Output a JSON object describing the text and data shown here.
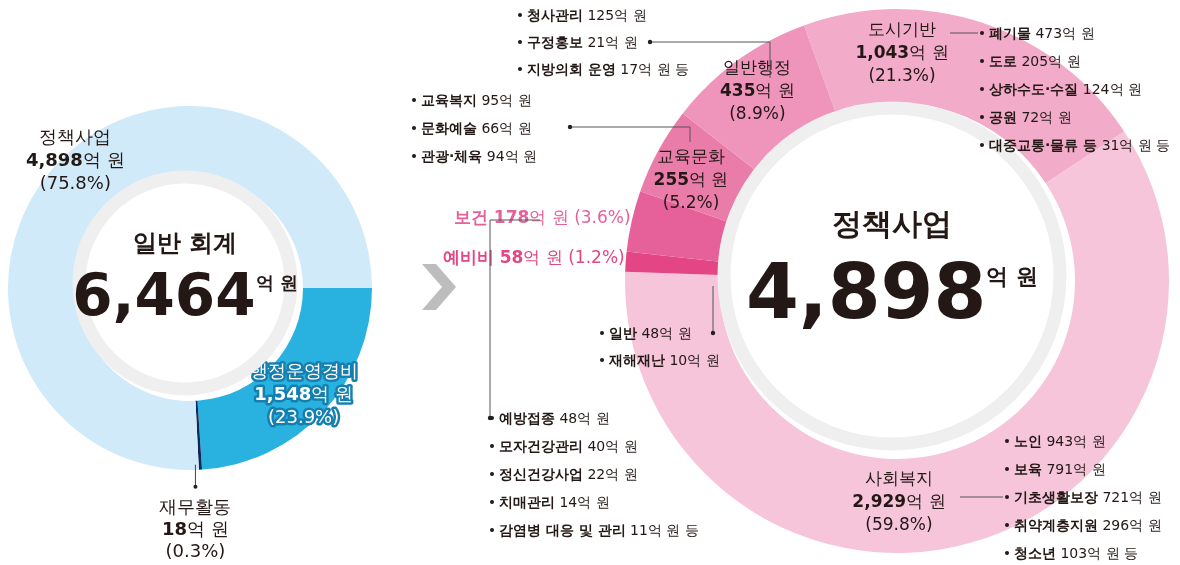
{
  "chart_data": [
    {
      "type": "donut",
      "title": "일반 회계",
      "subtitle": "6,464$^{억 원}$",
      "categories": [
        "행정운영경비",
        "재무활동",
        "정책사업"
      ],
      "values": [
        1548,
        18,
        4898
      ],
      "colors": [
        "#29b2e0",
        "#0d2a5a",
        "#d0eaf9"
      ],
      "value_labels": [
        "1,548억 원\n(23.9%)",
        "18억 원\n(0.3%)",
        "4,898억 원\n(75.8%)"
      ]
    },
    {
      "type": "donut",
      "title": "정책사업",
      "subtitle": "4,898$^{억 원}$",
      "categories": [
        "도시기반",
        "사회복지",
        "예비비",
        "보건",
        "교육문화",
        "일반행정"
      ],
      "values": [
        1043,
        2929,
        58,
        178,
        255,
        435
      ],
      "colors": [
        "#f2abc9",
        "#f6c5da",
        "#e44585",
        "#e6609a",
        "#ea7caa",
        "#ef95bb"
      ],
      "value_labels": [
        "1,043억 원\n(21.3%)",
        "2,929억 원\n(59.8%)",
        "58억 원 (1.2%)",
        "178억 원 (3.6%)",
        "255억 원\n(5.2%)",
        "435억 원\n(8.9%)"
      ],
      "annotations": [
        "청사관리 125억 원",
        "구정홍보 21억 원",
        "지방의회 운영 17억 원 등",
        "교육복지 95억 원",
        "문화예술 66억 원",
        "관광·체육 94억 원",
        "폐기물 473억 원",
        "도로 205억 원",
        "상하수도·수질 124억 원",
        "공원 72억 원",
        "대중교통·물류 등 31억 원 등",
        "일반 48억 원",
        "재해재난 10억 원",
        "예방접종 48억 원",
        "모자건강관리 40억 원",
        "정신건강사업 22억 원",
        "치매관리 14억 원",
        "감염병 대응 및 관리 11억 원 등",
        "노인 943억 원",
        "보육 791억 원",
        "기초생활보장 721억 원",
        "취약계층지원 296억 원",
        "청소년 103억 원 등"
      ]
    }
  ]
}
